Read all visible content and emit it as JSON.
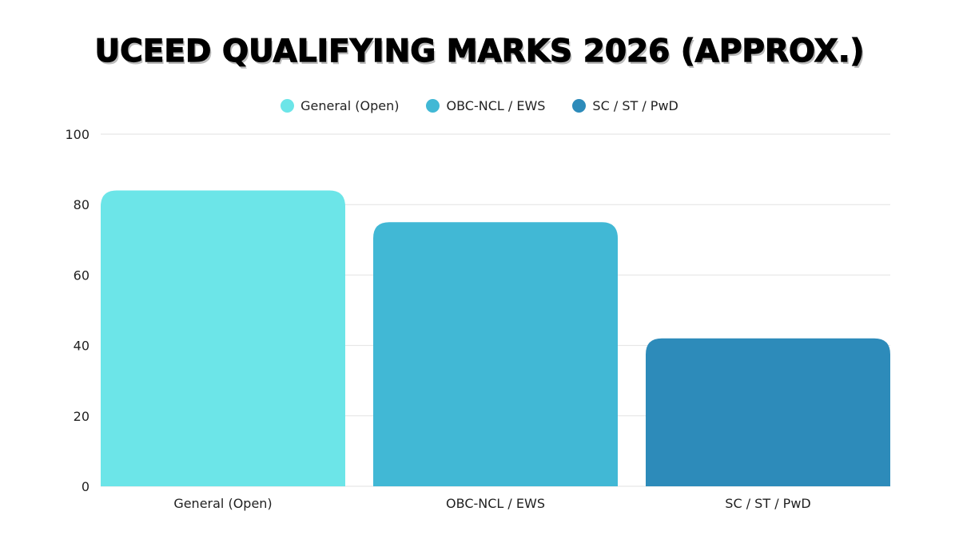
{
  "chart_data": {
    "type": "bar",
    "title": "UCEED QUALIFYING MARKS 2026 (APPROX.)",
    "categories": [
      "General (Open)",
      "OBC-NCL / EWS",
      "SC / ST / PwD"
    ],
    "values": [
      84,
      75,
      42
    ],
    "colors": [
      "#6CE5E8",
      "#41B8D5",
      "#2D8BBA"
    ],
    "legend": {
      "position": "top",
      "entries": [
        "General (Open)",
        "OBC-NCL / EWS",
        "SC / ST / PwD"
      ]
    },
    "ylim": [
      0,
      100
    ],
    "yticks": [
      0,
      20,
      40,
      60,
      80,
      100
    ],
    "grid": true,
    "xlabel": "",
    "ylabel": ""
  }
}
